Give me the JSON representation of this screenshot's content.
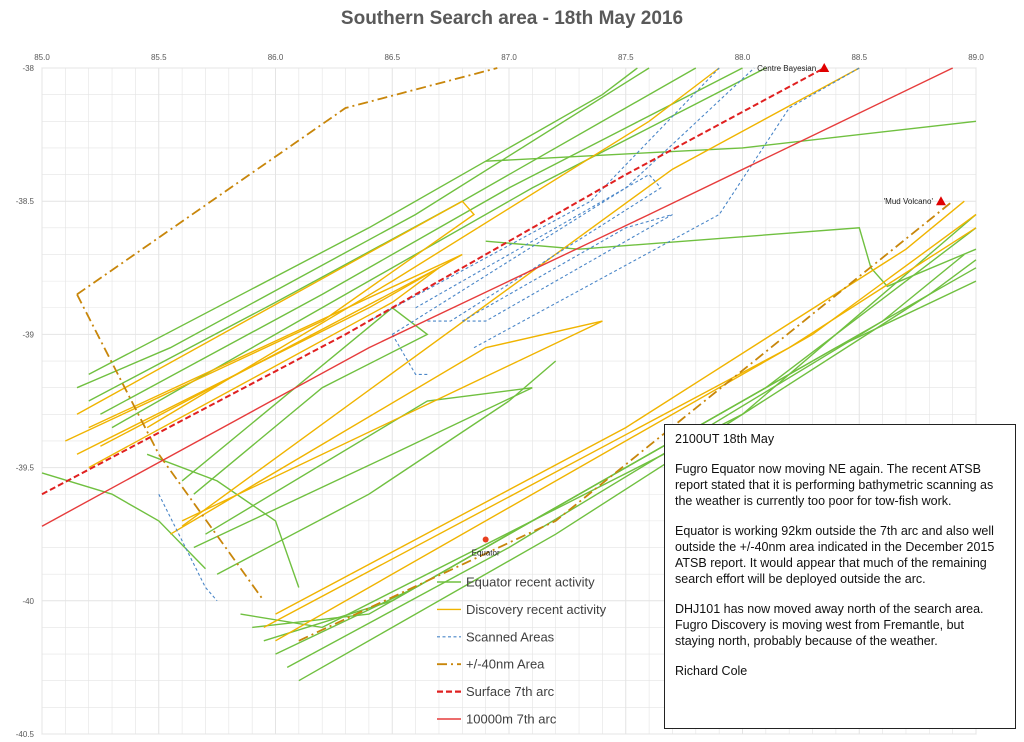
{
  "chart_data": {
    "type": "line",
    "title": "Southern Search area - 18th May 2016",
    "xlim": [
      85.0,
      89.0
    ],
    "ylim": [
      -40.5,
      -38
    ],
    "x_ticks": [
      "85.0",
      "85.5",
      "86.0",
      "86.5",
      "87.0",
      "87.5",
      "88.0",
      "88.5",
      "89.0"
    ],
    "y_ticks": [
      "-38",
      "-38.5",
      "-39",
      "-39.5",
      "-40",
      "-40.5"
    ],
    "grid": true,
    "legend_position": "bottom-center",
    "series": [
      {
        "name": "Equator recent activity",
        "color": "#70c040",
        "style": "solid",
        "tracks": [
          [
            [
              85.15,
              -39.2
            ],
            [
              85.55,
              -39.05
            ],
            [
              86.6,
              -38.55
            ],
            [
              87.6,
              -38.0
            ]
          ],
          [
            [
              85.2,
              -39.25
            ],
            [
              86.0,
              -38.88
            ],
            [
              86.8,
              -38.5
            ],
            [
              87.8,
              -38.0
            ]
          ],
          [
            [
              85.25,
              -39.3
            ],
            [
              86.2,
              -38.85
            ],
            [
              87.0,
              -38.45
            ],
            [
              88.0,
              -38.0
            ]
          ],
          [
            [
              85.3,
              -39.35
            ],
            [
              86.3,
              -38.85
            ],
            [
              87.1,
              -38.45
            ],
            [
              88.1,
              -38.0
            ]
          ],
          [
            [
              85.2,
              -39.15
            ],
            [
              86.4,
              -38.6
            ],
            [
              87.4,
              -38.1
            ],
            [
              87.55,
              -38.0
            ]
          ],
          [
            [
              85.6,
              -39.55
            ],
            [
              86.5,
              -38.9
            ],
            [
              86.65,
              -39.0
            ],
            [
              86.2,
              -39.2
            ],
            [
              85.65,
              -39.6
            ]
          ],
          [
            [
              85.65,
              -39.8
            ],
            [
              86.5,
              -39.45
            ],
            [
              87.1,
              -39.2
            ],
            [
              86.65,
              -39.25
            ],
            [
              85.7,
              -39.75
            ]
          ],
          [
            [
              85.75,
              -39.9
            ],
            [
              86.4,
              -39.6
            ],
            [
              87.0,
              -39.25
            ],
            [
              87.2,
              -39.1
            ]
          ],
          [
            [
              86.9,
              -38.65
            ],
            [
              87.3,
              -38.68
            ],
            [
              88.5,
              -38.6
            ],
            [
              88.55,
              -38.75
            ],
            [
              88.62,
              -38.82
            ],
            [
              89.0,
              -38.68
            ]
          ],
          [
            [
              86.9,
              -38.35
            ],
            [
              88.0,
              -38.3
            ],
            [
              89.0,
              -38.2
            ]
          ],
          [
            [
              85.85,
              -40.05
            ],
            [
              86.2,
              -40.1
            ],
            [
              88.0,
              -39.3
            ],
            [
              89.0,
              -38.55
            ]
          ],
          [
            [
              85.9,
              -40.1
            ],
            [
              86.4,
              -40.05
            ],
            [
              88.1,
              -39.2
            ],
            [
              89.0,
              -38.6
            ]
          ],
          [
            [
              85.95,
              -40.15
            ],
            [
              86.5,
              -40.0
            ],
            [
              88.2,
              -39.15
            ],
            [
              89.0,
              -38.75
            ]
          ],
          [
            [
              86.0,
              -40.2
            ],
            [
              86.6,
              -39.95
            ],
            [
              88.4,
              -39.05
            ],
            [
              89.0,
              -38.8
            ]
          ],
          [
            [
              86.05,
              -40.25
            ],
            [
              87.0,
              -39.8
            ],
            [
              88.6,
              -38.95
            ],
            [
              88.95,
              -38.7
            ]
          ],
          [
            [
              86.1,
              -40.3
            ],
            [
              87.2,
              -39.75
            ],
            [
              88.8,
              -38.85
            ],
            [
              89.0,
              -38.72
            ]
          ],
          [
            [
              85.0,
              -39.52
            ],
            [
              85.3,
              -39.6
            ],
            [
              85.5,
              -39.7
            ],
            [
              85.7,
              -39.88
            ]
          ],
          [
            [
              85.45,
              -39.45
            ],
            [
              85.75,
              -39.55
            ],
            [
              86.0,
              -39.7
            ],
            [
              86.1,
              -39.95
            ]
          ]
        ]
      },
      {
        "name": "Discovery recent activity",
        "color": "#f0b400",
        "style": "solid",
        "tracks": [
          [
            [
              85.1,
              -39.4
            ],
            [
              86.2,
              -38.95
            ],
            [
              86.85,
              -38.55
            ],
            [
              86.8,
              -38.5
            ],
            [
              85.15,
              -39.3
            ]
          ],
          [
            [
              85.15,
              -39.45
            ],
            [
              86.4,
              -38.9
            ],
            [
              86.8,
              -38.7
            ],
            [
              85.2,
              -39.35
            ]
          ],
          [
            [
              85.2,
              -39.5
            ],
            [
              86.5,
              -38.88
            ],
            [
              86.7,
              -38.75
            ],
            [
              85.25,
              -39.42
            ]
          ],
          [
            [
              85.55,
              -39.75
            ],
            [
              86.9,
              -39.05
            ],
            [
              87.4,
              -38.95
            ],
            [
              85.6,
              -39.7
            ]
          ],
          [
            [
              85.6,
              -39.72
            ],
            [
              87.7,
              -38.38
            ],
            [
              88.5,
              -38.0
            ]
          ],
          [
            [
              86.0,
              -40.05
            ],
            [
              87.5,
              -39.35
            ],
            [
              88.7,
              -38.68
            ],
            [
              88.95,
              -38.5
            ]
          ],
          [
            [
              85.95,
              -40.1
            ],
            [
              88.2,
              -39.05
            ],
            [
              89.0,
              -38.6
            ]
          ],
          [
            [
              86.0,
              -40.15
            ],
            [
              88.3,
              -39.0
            ],
            [
              89.0,
              -38.55
            ]
          ],
          [
            [
              85.45,
              -39.35
            ],
            [
              86.5,
              -38.8
            ],
            [
              87.6,
              -38.2
            ],
            [
              87.9,
              -38.0
            ]
          ]
        ]
      },
      {
        "name": "Scanned Areas",
        "color": "#4a86c8",
        "style": "dashed",
        "tracks": [
          [
            [
              86.4,
              -38.95
            ],
            [
              87.35,
              -38.5
            ],
            [
              87.9,
              -38.0
            ]
          ],
          [
            [
              86.5,
              -39.0
            ],
            [
              87.5,
              -38.45
            ],
            [
              88.05,
              -38.0
            ]
          ],
          [
            [
              86.6,
              -38.9
            ],
            [
              87.6,
              -38.4
            ],
            [
              87.65,
              -38.45
            ],
            [
              86.75,
              -38.95
            ],
            [
              86.65,
              -38.95
            ]
          ],
          [
            [
              86.8,
              -38.95
            ],
            [
              87.5,
              -38.6
            ],
            [
              87.7,
              -38.55
            ],
            [
              86.9,
              -38.95
            ],
            [
              86.8,
              -38.95
            ]
          ],
          [
            [
              86.85,
              -39.05
            ],
            [
              87.9,
              -38.55
            ],
            [
              88.2,
              -38.15
            ],
            [
              88.5,
              -38.0
            ]
          ],
          [
            [
              86.5,
              -39.0
            ],
            [
              86.6,
              -39.15
            ],
            [
              86.65,
              -39.15
            ]
          ],
          [
            [
              85.5,
              -39.6
            ],
            [
              85.7,
              -39.95
            ],
            [
              85.75,
              -40.0
            ]
          ]
        ]
      },
      {
        "name": "+/-40nm Area",
        "color": "#c8860a",
        "style": "dashdot",
        "tracks": [
          [
            [
              85.15,
              -38.85
            ],
            [
              86.3,
              -38.15
            ],
            [
              86.95,
              -38.0
            ]
          ],
          [
            [
              85.15,
              -38.85
            ],
            [
              85.5,
              -39.45
            ],
            [
              85.95,
              -40.0
            ]
          ],
          [
            [
              86.1,
              -40.15
            ],
            [
              87.2,
              -39.7
            ],
            [
              88.9,
              -38.5
            ]
          ]
        ]
      },
      {
        "name": "Surface 7th arc",
        "color": "#e02020",
        "style": "dashed",
        "tracks": [
          [
            [
              85.0,
              -39.6
            ],
            [
              86.3,
              -39.0
            ],
            [
              87.5,
              -38.4
            ],
            [
              88.35,
              -38.0
            ]
          ]
        ]
      },
      {
        "name": "10000m 7th arc",
        "color": "#e63c3c",
        "style": "solid",
        "tracks": [
          [
            [
              85.0,
              -39.72
            ],
            [
              86.4,
              -39.05
            ],
            [
              87.6,
              -38.55
            ],
            [
              88.9,
              -38.0
            ]
          ]
        ]
      }
    ],
    "annotations": [
      {
        "label": "Centre Bayesian",
        "x": 88.35,
        "y": -38.0
      },
      {
        "label": "'Mud Volcano'",
        "x": 88.85,
        "y": -38.5
      },
      {
        "label": "Equator",
        "x": 86.9,
        "y": -39.77
      }
    ]
  },
  "note": {
    "heading": "2100UT 18th May",
    "p1": "Fugro Equator now moving NE again. The recent ATSB report stated that it is performing bathymetric scanning as the weather is currently too poor for tow-fish work.",
    "p2": "Equator is working 92km outside the 7th arc and also well outside the +/-40nm area indicated in the December 2015 ATSB report. It would appear that much of the remaining search effort will be deployed outside the arc.",
    "p3": "DHJ101 has now moved away north of the search area. Fugro Discovery is moving west from Fremantle, but staying north, probably because of the weather.",
    "signature": "Richard Cole"
  },
  "colors": {
    "equator": "#70c040",
    "discovery": "#f0b400",
    "scanned": "#4a86c8",
    "area40nm": "#c8860a",
    "surface_arc": "#e02020",
    "arc10000": "#e63c3c",
    "marker": "#e00000",
    "equator_marker": "#e84020"
  }
}
